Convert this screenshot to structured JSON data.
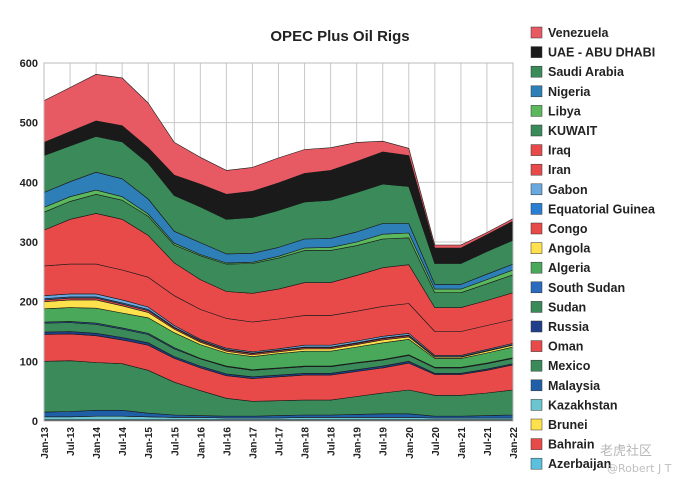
{
  "chart_data": {
    "type": "area",
    "stacked": true,
    "title": "OPEC Plus Oil Rigs",
    "xlabel": "",
    "ylabel": "",
    "ylim": [
      0,
      600
    ],
    "yticks": [
      0,
      100,
      200,
      300,
      400,
      500,
      600
    ],
    "grid": true,
    "legend_position": "right",
    "x": [
      "Jan-13",
      "Jul-13",
      "Jan-14",
      "Jul-14",
      "Jan-15",
      "Jul-15",
      "Jan-16",
      "Jul-16",
      "Jan-17",
      "Jul-17",
      "Jan-18",
      "Jul-18",
      "Jan-19",
      "Jul-19",
      "Jan-20",
      "Jul-20",
      "Jan-21",
      "Jul-21",
      "Jan-22"
    ],
    "xlabels": [
      "Jan-13",
      "Jul-13",
      "Jan-14",
      "Jul-14",
      "Jan-15",
      "Jul-15",
      "Jan-16",
      "Jul-16",
      "Jan-17",
      "Jul-17",
      "Jan-18",
      "Jul-18",
      "Jan-19",
      "Jul-19",
      "Jan-20",
      "Jul-20",
      "Jan-21",
      "Jul-21",
      "Jan-22"
    ],
    "series": [
      {
        "name": "Azerbaijan",
        "color": "#5bc0de",
        "values": [
          0,
          0,
          0,
          0,
          0,
          0,
          0,
          0,
          0,
          0,
          0,
          0,
          0,
          0,
          0,
          0,
          0,
          0,
          0
        ]
      },
      {
        "name": "Bahrain",
        "color": "#e84a4a",
        "values": [
          1,
          1,
          1,
          1,
          1,
          1,
          1,
          1,
          1,
          1,
          1,
          1,
          1,
          1,
          1,
          1,
          1,
          1,
          1
        ]
      },
      {
        "name": "Brunei",
        "color": "#ffe14d",
        "values": [
          1,
          1,
          1,
          1,
          1,
          1,
          1,
          1,
          1,
          1,
          1,
          1,
          1,
          1,
          1,
          1,
          1,
          1,
          1
        ]
      },
      {
        "name": "Kazakhstan",
        "color": "#6cc4cf",
        "values": [
          5,
          5,
          6,
          6,
          5,
          4,
          4,
          3,
          3,
          3,
          4,
          4,
          4,
          4,
          4,
          3,
          3,
          3,
          3
        ]
      },
      {
        "name": "Malaysia",
        "color": "#1f5fa8",
        "values": [
          8,
          9,
          10,
          10,
          6,
          4,
          3,
          3,
          3,
          4,
          4,
          4,
          5,
          6,
          6,
          3,
          3,
          4,
          5
        ]
      },
      {
        "name": "Mexico",
        "color": "#3a8a5a",
        "values": [
          85,
          85,
          80,
          78,
          72,
          55,
          42,
          30,
          25,
          25,
          25,
          25,
          30,
          35,
          40,
          35,
          35,
          38,
          42
        ]
      },
      {
        "name": "Oman",
        "color": "#e84a4a",
        "values": [
          45,
          45,
          45,
          40,
          42,
          40,
          38,
          38,
          38,
          40,
          42,
          42,
          42,
          42,
          45,
          35,
          35,
          38,
          42
        ]
      },
      {
        "name": "Russia",
        "color": "#1f3f8a",
        "values": [
          4,
          4,
          4,
          4,
          4,
          3,
          3,
          3,
          3,
          3,
          3,
          3,
          3,
          3,
          3,
          2,
          2,
          2,
          2
        ]
      },
      {
        "name": "Sudan",
        "color": "#3a8a5a",
        "values": [
          15,
          15,
          15,
          14,
          14,
          13,
          12,
          12,
          11,
          11,
          11,
          11,
          11,
          10,
          10,
          9,
          9,
          9,
          9
        ]
      },
      {
        "name": "South Sudan",
        "color": "#2a6bc0",
        "values": [
          2,
          2,
          2,
          2,
          2,
          2,
          1,
          1,
          1,
          1,
          1,
          1,
          1,
          1,
          1,
          1,
          1,
          1,
          1
        ]
      },
      {
        "name": "Algeria",
        "color": "#49a85a",
        "values": [
          22,
          23,
          25,
          25,
          26,
          25,
          23,
          22,
          22,
          24,
          25,
          25,
          26,
          28,
          26,
          15,
          15,
          17,
          18
        ]
      },
      {
        "name": "Angola",
        "color": "#ffe14d",
        "values": [
          12,
          13,
          14,
          12,
          9,
          6,
          4,
          3,
          3,
          3,
          4,
          4,
          4,
          5,
          4,
          2,
          2,
          3,
          3
        ]
      },
      {
        "name": "Congo",
        "color": "#e84a4a",
        "values": [
          3,
          3,
          3,
          3,
          3,
          2,
          2,
          2,
          2,
          2,
          2,
          2,
          2,
          2,
          2,
          1,
          1,
          1,
          1
        ]
      },
      {
        "name": "Equatorial Guinea",
        "color": "#2a7fd4",
        "values": [
          2,
          2,
          2,
          2,
          2,
          1,
          1,
          1,
          1,
          1,
          1,
          1,
          1,
          1,
          1,
          0,
          0,
          0,
          0
        ]
      },
      {
        "name": "Gabon",
        "color": "#6aa8e0",
        "values": [
          5,
          5,
          5,
          5,
          4,
          3,
          2,
          2,
          2,
          2,
          3,
          3,
          3,
          3,
          3,
          2,
          2,
          2,
          2
        ]
      },
      {
        "name": "Iran",
        "color": "#e84a4a",
        "values": [
          50,
          50,
          50,
          50,
          50,
          50,
          50,
          50,
          50,
          50,
          50,
          50,
          50,
          50,
          50,
          40,
          40,
          40,
          40
        ]
      },
      {
        "name": "Iraq",
        "color": "#e84a4a",
        "values": [
          60,
          75,
          85,
          85,
          70,
          55,
          50,
          45,
          48,
          50,
          55,
          55,
          60,
          65,
          65,
          40,
          40,
          42,
          45
        ]
      },
      {
        "name": "KUWAIT",
        "color": "#3a8a5a",
        "values": [
          30,
          30,
          32,
          32,
          32,
          30,
          40,
          46,
          50,
          52,
          54,
          54,
          50,
          48,
          45,
          25,
          25,
          28,
          30
        ]
      },
      {
        "name": "Libya",
        "color": "#5cb85c",
        "values": [
          8,
          8,
          7,
          6,
          4,
          3,
          2,
          2,
          2,
          3,
          4,
          5,
          6,
          8,
          8,
          6,
          6,
          7,
          8
        ]
      },
      {
        "name": "Nigeria",
        "color": "#2e7fb8",
        "values": [
          25,
          25,
          30,
          30,
          25,
          20,
          20,
          15,
          15,
          15,
          15,
          15,
          17,
          18,
          16,
          8,
          8,
          9,
          10
        ]
      },
      {
        "name": "Saudi Arabia",
        "color": "#3a8a5a",
        "values": [
          62,
          60,
          60,
          62,
          60,
          60,
          60,
          58,
          60,
          62,
          62,
          64,
          66,
          66,
          62,
          35,
          35,
          38,
          40
        ]
      },
      {
        "name": "UAE - ABU DHABI",
        "color": "#1a1a1a",
        "values": [
          22,
          24,
          26,
          27,
          26,
          34,
          38,
          42,
          44,
          46,
          48,
          50,
          52,
          54,
          52,
          26,
          26,
          28,
          32
        ]
      },
      {
        "name": "Venezuela",
        "color": "#e85a63",
        "values": [
          70,
          74,
          78,
          80,
          75,
          55,
          45,
          40,
          40,
          42,
          40,
          38,
          32,
          18,
          12,
          5,
          5,
          4,
          4
        ]
      }
    ]
  },
  "watermark": "老虎社区",
  "watermark_sub": "@Robert J T"
}
